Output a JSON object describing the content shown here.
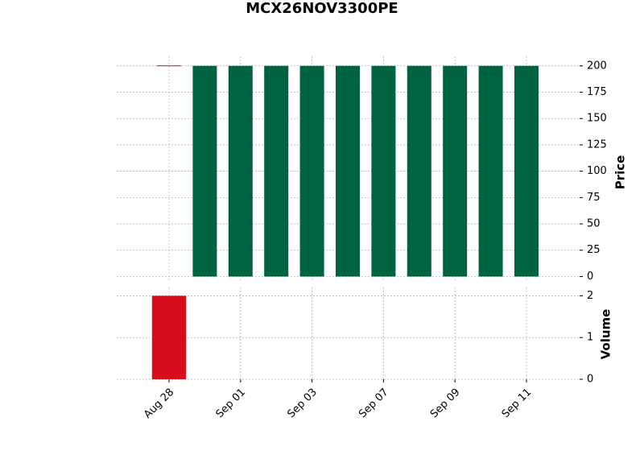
{
  "chart_data": {
    "type": "candlestick",
    "title": "MCX26NOV3300PE",
    "categories": [
      "Aug 28",
      null,
      "Sep 01",
      null,
      "Sep 03",
      null,
      "Sep 07",
      null,
      "Sep 09",
      null,
      "Sep 11"
    ],
    "open": [
      200,
      0,
      0,
      0,
      0,
      0,
      0,
      0,
      0,
      0,
      0
    ],
    "high": [
      200,
      200,
      200,
      200,
      200,
      200,
      200,
      200,
      200,
      200,
      200
    ],
    "low": [
      200,
      0,
      0,
      0,
      0,
      0,
      0,
      0,
      0,
      0,
      0
    ],
    "close": [
      200,
      200,
      200,
      200,
      200,
      200,
      200,
      200,
      200,
      200,
      200
    ],
    "up_color": "#006340",
    "down_color": "#d60d1a",
    "ylabel": "Price",
    "ylim": [
      -5,
      209
    ],
    "yticks": [
      0,
      25,
      50,
      75,
      100,
      125,
      150,
      175,
      200
    ],
    "volume": {
      "label": "Volume",
      "values": [
        2,
        0,
        0,
        0,
        0,
        0,
        0,
        0,
        0,
        0,
        0
      ],
      "ylim": [
        0,
        2.2
      ],
      "yticks": [
        0,
        1,
        2
      ]
    },
    "grid": true
  }
}
